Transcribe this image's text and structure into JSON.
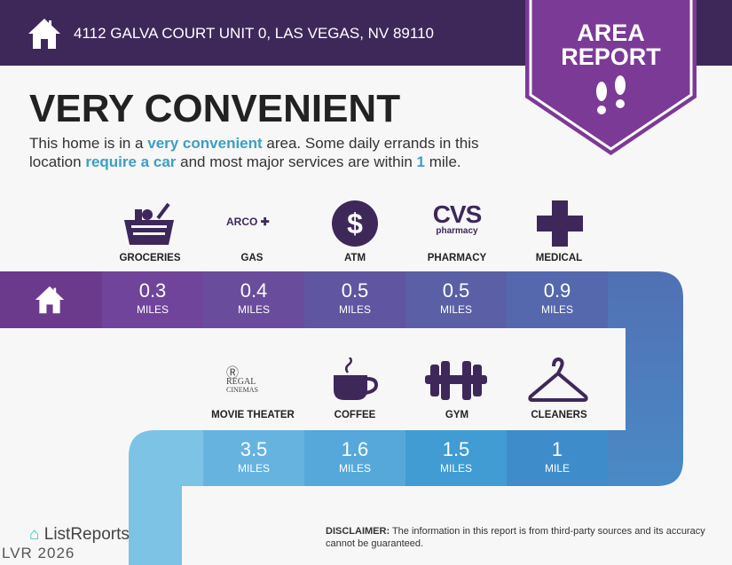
{
  "header": {
    "address": "4112 GALVA COURT UNIT 0, LAS VEGAS, NV 89110",
    "home_icon": "house-icon"
  },
  "badge": {
    "line1": "AREA",
    "line2": "REPORT",
    "icon": "footsteps-icon"
  },
  "title": "VERY CONVENIENT",
  "description": {
    "p1": "This home is in a ",
    "h1": "very convenient",
    "p2": " area. Some daily errands in this location ",
    "h2": "require a car",
    "p3": " and most major services are within ",
    "h3": "1",
    "p4": " mile."
  },
  "row1": [
    {
      "label": "GROCERIES",
      "value": "0.3",
      "unit": "MILES",
      "icon": "grocery-basket-icon"
    },
    {
      "label": "GAS",
      "value": "0.4",
      "unit": "MILES",
      "icon": "arco-logo",
      "logo_text": "ARCO"
    },
    {
      "label": "ATM",
      "value": "0.5",
      "unit": "MILES",
      "icon": "dollar-icon"
    },
    {
      "label": "PHARMACY",
      "value": "0.5",
      "unit": "MILES",
      "icon": "cvs-logo",
      "logo_text": "CVS",
      "logo_sub": "pharmacy"
    },
    {
      "label": "MEDICAL",
      "value": "0.9",
      "unit": "MILES",
      "icon": "medical-cross-icon"
    }
  ],
  "row2": [
    {
      "label": "MOVIE THEATER",
      "value": "3.5",
      "unit": "MILES",
      "icon": "regal-logo",
      "logo_text": "REGAL",
      "logo_sub": "CINEMAS"
    },
    {
      "label": "COFFEE",
      "value": "1.6",
      "unit": "MILES",
      "icon": "coffee-cup-icon"
    },
    {
      "label": "GYM",
      "value": "1.5",
      "unit": "MILES",
      "icon": "dumbbell-icon"
    },
    {
      "label": "CLEANERS",
      "value": "1",
      "unit": "MILE",
      "icon": "hanger-icon"
    }
  ],
  "disclaimer": {
    "bold": "DISCLAIMER:",
    "text": " The information in this report is from third-party sources and its accuracy cannot be guaranteed."
  },
  "footer": {
    "brand": "ListReports",
    "watermark": "LVR 2026"
  },
  "colors": {
    "header": "#3e285a",
    "badge": "#7b3a96",
    "purple": "#6b3a8c",
    "blue": "#4a88c4",
    "highlight": "#3d9ec4"
  }
}
